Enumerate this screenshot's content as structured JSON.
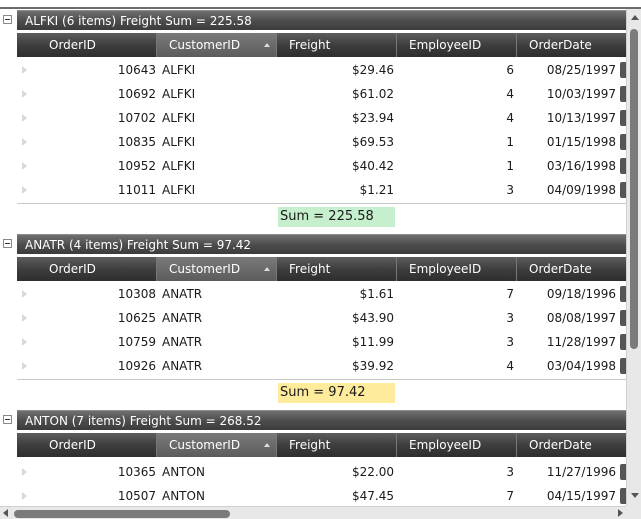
{
  "columns": [
    "OrderID",
    "CustomerID",
    "Freight",
    "EmployeeID",
    "OrderDate"
  ],
  "sorted_column": "CustomerID",
  "groups": [
    {
      "header": "ALFKI (6 items) Freight Sum = 225.58",
      "rows": [
        {
          "order_id": "10643",
          "customer_id": "ALFKI",
          "freight": "$29.46",
          "employee_id": "6",
          "order_date": "08/25/1997"
        },
        {
          "order_id": "10692",
          "customer_id": "ALFKI",
          "freight": "$61.02",
          "employee_id": "4",
          "order_date": "10/03/1997"
        },
        {
          "order_id": "10702",
          "customer_id": "ALFKI",
          "freight": "$23.94",
          "employee_id": "4",
          "order_date": "10/13/1997"
        },
        {
          "order_id": "10835",
          "customer_id": "ALFKI",
          "freight": "$69.53",
          "employee_id": "1",
          "order_date": "01/15/1998"
        },
        {
          "order_id": "10952",
          "customer_id": "ALFKI",
          "freight": "$40.42",
          "employee_id": "1",
          "order_date": "03/16/1998"
        },
        {
          "order_id": "11011",
          "customer_id": "ALFKI",
          "freight": "$1.21",
          "employee_id": "3",
          "order_date": "04/09/1998"
        }
      ],
      "footer_sum": "Sum = 225.58",
      "footer_color": "#c6efce"
    },
    {
      "header": "ANATR (4 items) Freight Sum = 97.42",
      "rows": [
        {
          "order_id": "10308",
          "customer_id": "ANATR",
          "freight": "$1.61",
          "employee_id": "7",
          "order_date": "09/18/1996"
        },
        {
          "order_id": "10625",
          "customer_id": "ANATR",
          "freight": "$43.90",
          "employee_id": "3",
          "order_date": "08/08/1997"
        },
        {
          "order_id": "10759",
          "customer_id": "ANATR",
          "freight": "$11.99",
          "employee_id": "3",
          "order_date": "11/28/1997"
        },
        {
          "order_id": "10926",
          "customer_id": "ANATR",
          "freight": "$39.92",
          "employee_id": "4",
          "order_date": "03/04/1998"
        }
      ],
      "footer_sum": "Sum = 97.42",
      "footer_color": "#ffeb9c"
    },
    {
      "header": "ANTON (7 items) Freight Sum = 268.52",
      "rows": [
        {
          "order_id": "10365",
          "customer_id": "ANTON",
          "freight": "$22.00",
          "employee_id": "3",
          "order_date": "11/27/1996"
        },
        {
          "order_id": "10507",
          "customer_id": "ANTON",
          "freight": "$47.45",
          "employee_id": "7",
          "order_date": "04/15/1997"
        }
      ]
    }
  ],
  "icons": {
    "expander": "collapse-minus-icon",
    "row_indicator": "row-indicator-arrow-icon",
    "sort": "sort-ascending-icon"
  },
  "colors": {
    "header_dark": "#3e3e3e",
    "sum_green": "#c6efce",
    "sum_yellow": "#ffeb9c"
  }
}
